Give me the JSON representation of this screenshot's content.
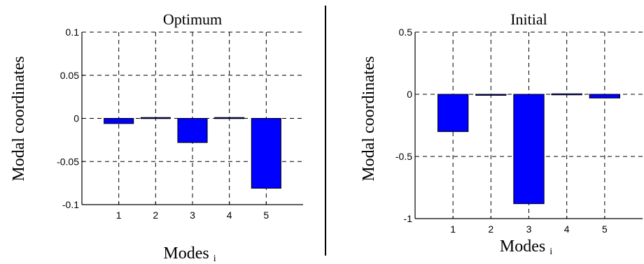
{
  "colors": {
    "bar": "#0000ff",
    "bar_edge": "#000000",
    "grid": "#000000",
    "divider": "#000000"
  },
  "chart_data": [
    {
      "type": "bar",
      "title": "Optimum",
      "ylabel": "Modal coordinates",
      "xlabel": "Modes",
      "xlabel_sub": "i",
      "categories": [
        "1",
        "2",
        "3",
        "4",
        "5"
      ],
      "values": [
        -0.006,
        0.001,
        -0.028,
        0.001,
        -0.081
      ],
      "ylim": [
        -0.1,
        0.1
      ],
      "xlim": [
        0,
        6
      ],
      "yticks": [
        0.1,
        0.05,
        0,
        -0.05,
        -0.1
      ],
      "ytick_labels": [
        "0.1",
        "0.05",
        "0",
        "-0.05",
        "-0.1"
      ],
      "grid": true
    },
    {
      "type": "bar",
      "title": "Initial",
      "ylabel": "Modal coordinates",
      "xlabel": "Modes",
      "xlabel_sub": "i",
      "categories": [
        "1",
        "2",
        "3",
        "4",
        "5"
      ],
      "values": [
        -0.3,
        -0.003,
        -0.88,
        0.004,
        -0.03
      ],
      "ylim": [
        -1,
        0.5
      ],
      "xlim": [
        0,
        6
      ],
      "yticks": [
        0.5,
        0,
        -0.5,
        -1
      ],
      "ytick_labels": [
        "0.5",
        "0",
        "-0.5",
        "-1"
      ],
      "grid": true
    }
  ]
}
